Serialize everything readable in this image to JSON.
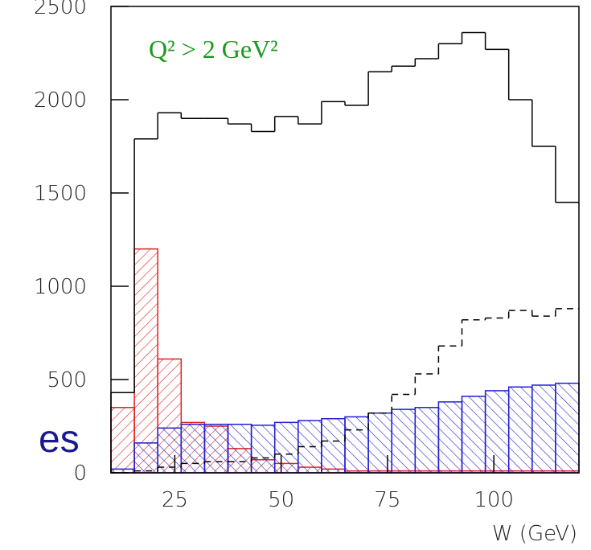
{
  "background_text": "es",
  "chart_data": {
    "type": "histogram",
    "annotation": "Q² > 2 GeV²",
    "x_label": "W (GeV)",
    "bins": [
      10,
      15.5,
      21,
      26.5,
      32,
      37.5,
      43,
      48.5,
      54,
      59.5,
      65,
      70.5,
      76,
      81.5,
      87,
      92.5,
      98,
      103.5,
      109,
      114.5,
      120
    ],
    "series": [
      {
        "color": "#000000",
        "style": "solid",
        "values": [
          430,
          1790,
          1930,
          1900,
          1900,
          1870,
          1830,
          1910,
          1870,
          1990,
          1970,
          2150,
          2180,
          2220,
          2300,
          2360,
          2270,
          2000,
          1750,
          1450
        ]
      },
      {
        "color": "#000000",
        "style": "dashed",
        "values": [
          0,
          10,
          30,
          50,
          60,
          60,
          80,
          100,
          140,
          170,
          230,
          320,
          420,
          530,
          680,
          820,
          830,
          870,
          840,
          880
        ]
      },
      {
        "color": "#e02020",
        "style": "hatch-back",
        "values": [
          350,
          1200,
          610,
          270,
          250,
          130,
          70,
          50,
          30,
          20,
          10,
          10,
          10,
          10,
          10,
          10,
          10,
          10,
          10,
          10
        ]
      },
      {
        "color": "#2020d0",
        "style": "hatch-fwd",
        "values": [
          20,
          160,
          240,
          260,
          260,
          260,
          255,
          270,
          280,
          290,
          300,
          320,
          340,
          350,
          380,
          410,
          440,
          460,
          470,
          480
        ]
      }
    ],
    "xlim": [
      10,
      120
    ],
    "xticks": [
      25,
      50,
      75,
      100
    ],
    "ylim": [
      0,
      2500
    ],
    "yticks": [
      0,
      500,
      1000,
      1500,
      2000,
      2500
    ]
  }
}
